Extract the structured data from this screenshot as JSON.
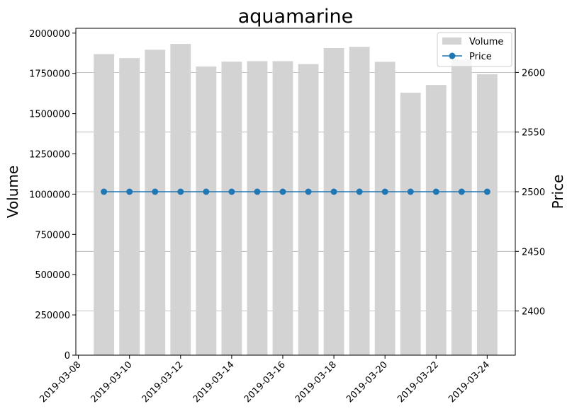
{
  "chart_data": {
    "type": "bar+line",
    "title": "aquamarine",
    "ylabel_left": "Volume",
    "ylabel_right": "Price",
    "x": [
      "2019-03-09",
      "2019-03-10",
      "2019-03-11",
      "2019-03-12",
      "2019-03-13",
      "2019-03-14",
      "2019-03-15",
      "2019-03-16",
      "2019-03-17",
      "2019-03-18",
      "2019-03-19",
      "2019-03-20",
      "2019-03-21",
      "2019-03-22",
      "2019-03-23",
      "2019-03-24"
    ],
    "xticks": [
      "2019-03-08",
      "2019-03-10",
      "2019-03-12",
      "2019-03-14",
      "2019-03-16",
      "2019-03-18",
      "2019-03-20",
      "2019-03-22",
      "2019-03-24"
    ],
    "series": [
      {
        "name": "Volume",
        "kind": "bar",
        "axis": "left",
        "color": "#d3d3d3",
        "values": [
          1870000,
          1845000,
          1897000,
          1933000,
          1793000,
          1823000,
          1826000,
          1826000,
          1808000,
          1907000,
          1915000,
          1822000,
          1630000,
          1678000,
          1835000,
          1745000
        ]
      },
      {
        "name": "Price",
        "kind": "line",
        "axis": "right",
        "color": "#1f77b4",
        "values": [
          2500,
          2500,
          2500,
          2500,
          2500,
          2500,
          2500,
          2500,
          2500,
          2500,
          2500,
          2500,
          2500,
          2500,
          2500,
          2500
        ]
      }
    ],
    "ylim_left": [
      0,
      2030000
    ],
    "ylim_right": [
      2363,
      2637
    ],
    "yticks_left": [
      "0",
      "250000",
      "500000",
      "750000",
      "1000000",
      "1250000",
      "1500000",
      "1750000",
      "2000000"
    ],
    "yticks_right": [
      "2400",
      "2450",
      "2500",
      "2550",
      "2600"
    ],
    "grid": "right-axis horizontal",
    "legend_placement": "top-right"
  }
}
